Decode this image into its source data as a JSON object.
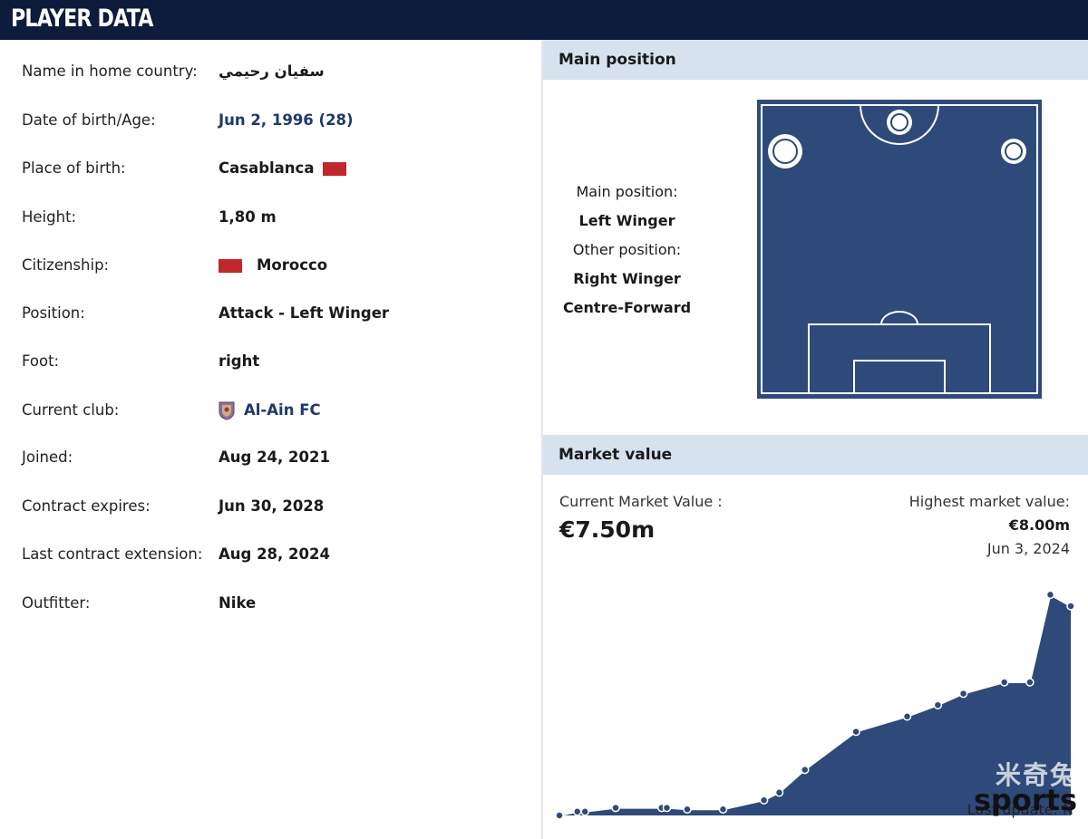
{
  "header": {
    "title": "PLAYER DATA"
  },
  "player": {
    "rows": [
      {
        "label": "Name in home country:",
        "value": "سفيان رحيمي"
      },
      {
        "label": "Date of birth/Age:",
        "value": "Jun 2, 1996 (28)"
      },
      {
        "label": "Place of birth:",
        "value": "Casablanca"
      },
      {
        "label": "Height:",
        "value": "1,80 m"
      },
      {
        "label": "Citizenship:",
        "value": "Morocco"
      },
      {
        "label": "Position:",
        "value": "Attack - Left Winger"
      },
      {
        "label": "Foot:",
        "value": "right"
      },
      {
        "label": "Current club:",
        "value": "Al-Ain FC"
      },
      {
        "label": "Joined:",
        "value": "Aug 24, 2021"
      },
      {
        "label": "Contract expires:",
        "value": "Jun 30, 2028"
      },
      {
        "label": "Last contract extension:",
        "value": "Aug 28, 2024"
      },
      {
        "label": "Outfitter:",
        "value": "Nike"
      }
    ],
    "flag_color": "#c1272d",
    "link_color": "#1d3a6b"
  },
  "main_position": {
    "heading": "Main position",
    "main_label": "Main position:",
    "main_value": "Left Winger",
    "other_label": "Other position:",
    "other_values": [
      "Right Winger",
      "Centre-Forward"
    ],
    "pitch_color": "#2e4a7a"
  },
  "market_value": {
    "heading": "Market value",
    "current_label": "Current Market Value :",
    "current_value": "€7.50m",
    "highest_label": "Highest market value:",
    "highest_value": "€8.00m",
    "highest_date": "Jun 3, 2024",
    "last_update": "Last update: N",
    "area_color": "#2e4a7a"
  },
  "watermark": {
    "cn": "米奇兔",
    "en": "sports"
  },
  "chart_data": {
    "type": "area",
    "values": [
      0.0,
      0.05,
      0.05,
      0.1,
      0.1,
      0.1,
      0.08,
      0.08,
      0.2,
      0.3,
      0.6,
      1.1,
      1.3,
      1.45,
      1.6,
      1.75,
      1.75,
      2.9,
      2.75
    ],
    "ylim": [
      0,
      3.0
    ]
  }
}
